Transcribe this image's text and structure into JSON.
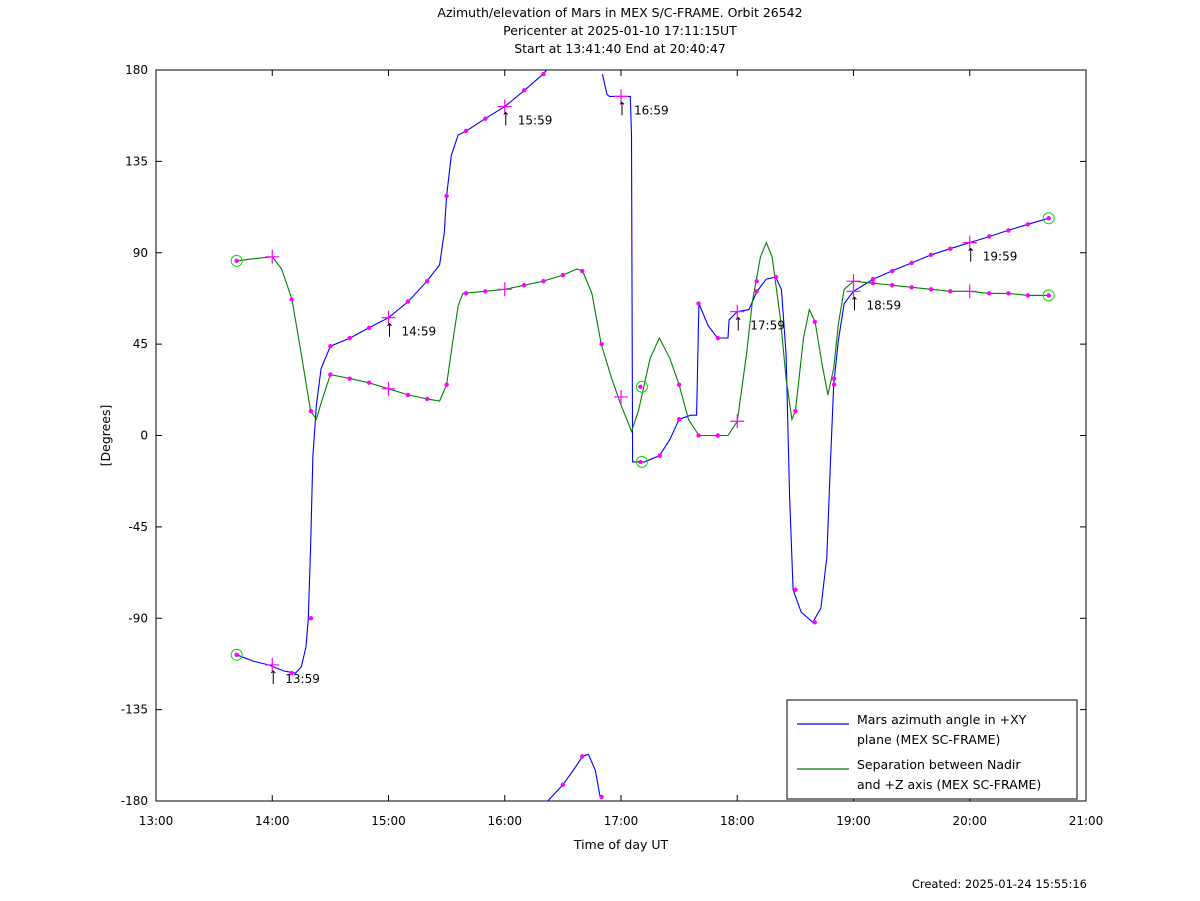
{
  "chart_data": {
    "type": "line",
    "title": "Azimuth/elevation of Mars in MEX S/C-FRAME.  Orbit 26542",
    "subtitle_lines": [
      "Pericenter at 2025-01-10 17:11:15UT",
      "Start at 13:41:40 End at 20:40:47"
    ],
    "xlabel": "Time of day UT",
    "ylabel": "[Degrees]",
    "x_unit": "hours",
    "xlim": [
      13,
      21
    ],
    "ylim": [
      -180,
      180
    ],
    "x_ticks": [
      {
        "x": 13,
        "label": "13:00"
      },
      {
        "x": 14,
        "label": "14:00"
      },
      {
        "x": 15,
        "label": "15:00"
      },
      {
        "x": 16,
        "label": "16:00"
      },
      {
        "x": 17,
        "label": "17:00"
      },
      {
        "x": 18,
        "label": "18:00"
      },
      {
        "x": 19,
        "label": "19:00"
      },
      {
        "x": 20,
        "label": "20:00"
      },
      {
        "x": 21,
        "label": "21:00"
      }
    ],
    "y_ticks": [
      {
        "y": 180,
        "label": "180"
      },
      {
        "y": 135,
        "label": "135"
      },
      {
        "y": 90,
        "label": "90"
      },
      {
        "y": 45,
        "label": "45"
      },
      {
        "y": 0,
        "label": "0"
      },
      {
        "y": -45,
        "label": "-45"
      },
      {
        "y": -90,
        "label": "-90"
      },
      {
        "y": -135,
        "label": "-135"
      },
      {
        "y": -180,
        "label": "-180"
      }
    ],
    "grid": false,
    "legend_position": "bottom-right",
    "series": [
      {
        "name": "Mars azimuth angle in +XY plane (MEX SC-FRAME)",
        "legend_lines": [
          "Mars azimuth angle in +XY",
          "plane (MEX SC-FRAME)"
        ],
        "color": "#0000ff",
        "points": [
          [
            13.694,
            -108
          ],
          [
            13.83,
            -111
          ],
          [
            13.97,
            -113
          ],
          [
            14.1,
            -116
          ],
          [
            14.2,
            -117
          ],
          [
            14.25,
            -114
          ],
          [
            14.29,
            -104
          ],
          [
            14.31,
            -90
          ],
          [
            14.33,
            -55
          ],
          [
            14.35,
            -10
          ],
          [
            14.38,
            15
          ],
          [
            14.42,
            33
          ],
          [
            14.5,
            44
          ],
          [
            14.67,
            48
          ],
          [
            14.83,
            53
          ],
          [
            15.0,
            58
          ],
          [
            15.17,
            66
          ],
          [
            15.33,
            76
          ],
          [
            15.44,
            84
          ],
          [
            15.48,
            100
          ],
          [
            15.5,
            118
          ],
          [
            15.54,
            138
          ],
          [
            15.6,
            148
          ],
          [
            15.67,
            150
          ],
          [
            15.83,
            156
          ],
          [
            16.0,
            162
          ],
          [
            16.17,
            170
          ],
          [
            16.33,
            178
          ],
          [
            16.36,
            180
          ],
          null,
          [
            16.37,
            -180
          ],
          [
            16.5,
            -172
          ],
          [
            16.6,
            -164
          ],
          [
            16.67,
            -158
          ],
          [
            16.72,
            -157
          ],
          [
            16.78,
            -165
          ],
          [
            16.82,
            -178
          ],
          null,
          [
            16.84,
            178
          ],
          [
            16.88,
            168
          ],
          [
            16.9,
            167
          ],
          [
            17.08,
            167
          ],
          [
            17.09,
            148
          ],
          [
            17.1,
            -13
          ],
          [
            17.2,
            -13
          ],
          [
            17.33,
            -10
          ],
          [
            17.42,
            -2
          ],
          [
            17.5,
            8
          ],
          [
            17.6,
            10
          ],
          [
            17.65,
            10
          ],
          [
            17.67,
            65
          ],
          [
            17.75,
            54
          ],
          [
            17.83,
            48
          ],
          [
            17.92,
            48
          ],
          [
            17.93,
            57
          ],
          [
            18.0,
            61
          ],
          [
            18.1,
            62
          ],
          [
            18.17,
            71
          ],
          [
            18.25,
            77
          ],
          [
            18.33,
            78
          ],
          [
            18.38,
            72
          ],
          [
            18.42,
            40
          ],
          [
            18.45,
            -30
          ],
          [
            18.48,
            -76
          ],
          [
            18.55,
            -87
          ],
          [
            18.65,
            -92
          ],
          [
            18.72,
            -85
          ],
          [
            18.77,
            -60
          ],
          [
            18.8,
            -15
          ],
          [
            18.83,
            25
          ],
          [
            18.87,
            47
          ],
          [
            18.92,
            65
          ],
          [
            19.0,
            71
          ],
          [
            19.17,
            77
          ],
          [
            19.33,
            81
          ],
          [
            19.5,
            85
          ],
          [
            19.67,
            89
          ],
          [
            19.83,
            92
          ],
          [
            20.0,
            95
          ],
          [
            20.17,
            98
          ],
          [
            20.33,
            101
          ],
          [
            20.5,
            104
          ],
          [
            20.679,
            107
          ]
        ]
      },
      {
        "name": "Separation between Nadir and +Z axis (MEX SC-FRAME)",
        "legend_lines": [
          "Separation between Nadir",
          "and +Z axis (MEX SC-FRAME)"
        ],
        "color": "#007f00",
        "points": [
          [
            13.694,
            86
          ],
          [
            13.83,
            87
          ],
          [
            14.0,
            88
          ],
          [
            14.08,
            82
          ],
          [
            14.17,
            67
          ],
          [
            14.25,
            40
          ],
          [
            14.33,
            12
          ],
          [
            14.38,
            8
          ],
          [
            14.42,
            16
          ],
          [
            14.5,
            30
          ],
          [
            14.67,
            28
          ],
          [
            14.83,
            26
          ],
          [
            15.0,
            23
          ],
          [
            15.17,
            20
          ],
          [
            15.33,
            18
          ],
          [
            15.44,
            17
          ],
          [
            15.5,
            25
          ],
          [
            15.55,
            45
          ],
          [
            15.6,
            64
          ],
          [
            15.64,
            70
          ],
          [
            15.83,
            71
          ],
          [
            16.0,
            72
          ],
          [
            16.17,
            74
          ],
          [
            16.33,
            76
          ],
          [
            16.5,
            79
          ],
          [
            16.62,
            82
          ],
          [
            16.67,
            81
          ],
          [
            16.75,
            70
          ],
          [
            16.83,
            45
          ],
          [
            16.92,
            28
          ],
          [
            17.0,
            15
          ],
          [
            17.05,
            8
          ],
          [
            17.09,
            2
          ],
          [
            17.15,
            12
          ],
          [
            17.25,
            38
          ],
          [
            17.33,
            48
          ],
          [
            17.42,
            38
          ],
          [
            17.5,
            25
          ],
          [
            17.58,
            8
          ],
          [
            17.67,
            0
          ],
          [
            17.83,
            0
          ],
          [
            17.92,
            0
          ],
          [
            18.0,
            7
          ],
          [
            18.08,
            40
          ],
          [
            18.13,
            66
          ],
          [
            18.2,
            88
          ],
          [
            18.25,
            95
          ],
          [
            18.3,
            88
          ],
          [
            18.37,
            58
          ],
          [
            18.42,
            28
          ],
          [
            18.47,
            8
          ],
          [
            18.5,
            12
          ],
          [
            18.57,
            48
          ],
          [
            18.62,
            62
          ],
          [
            18.67,
            56
          ],
          [
            18.73,
            35
          ],
          [
            18.78,
            20
          ],
          [
            18.83,
            33
          ],
          [
            18.87,
            55
          ],
          [
            18.92,
            72
          ],
          [
            19.0,
            76
          ],
          [
            19.17,
            75
          ],
          [
            19.33,
            74
          ],
          [
            19.5,
            73
          ],
          [
            19.67,
            72
          ],
          [
            19.83,
            71
          ],
          [
            20.0,
            71
          ],
          [
            20.17,
            70
          ],
          [
            20.33,
            70
          ],
          [
            20.5,
            69
          ],
          [
            20.679,
            69
          ]
        ]
      }
    ],
    "dot_markers": [
      [
        13.694,
        -108
      ],
      [
        14.167,
        -117
      ],
      [
        14.333,
        -90
      ],
      [
        14.5,
        44
      ],
      [
        14.667,
        48
      ],
      [
        14.833,
        53
      ],
      [
        15.167,
        66
      ],
      [
        15.333,
        76
      ],
      [
        15.5,
        118
      ],
      [
        15.667,
        150
      ],
      [
        15.833,
        156
      ],
      [
        16.167,
        170
      ],
      [
        16.333,
        178
      ],
      [
        16.5,
        -172
      ],
      [
        16.667,
        -158
      ],
      [
        16.833,
        -178
      ],
      [
        17.167,
        -13
      ],
      [
        17.333,
        -10
      ],
      [
        17.5,
        8
      ],
      [
        17.667,
        65
      ],
      [
        17.833,
        48
      ],
      [
        18.167,
        71
      ],
      [
        18.333,
        78
      ],
      [
        18.5,
        -76
      ],
      [
        18.667,
        -92
      ],
      [
        18.833,
        25
      ],
      [
        19.167,
        77
      ],
      [
        19.333,
        81
      ],
      [
        19.5,
        85
      ],
      [
        19.667,
        89
      ],
      [
        19.833,
        92
      ],
      [
        20.167,
        98
      ],
      [
        20.333,
        101
      ],
      [
        20.5,
        104
      ],
      [
        20.679,
        107
      ],
      [
        13.694,
        86
      ],
      [
        14.167,
        67
      ],
      [
        14.333,
        12
      ],
      [
        14.5,
        30
      ],
      [
        14.667,
        28
      ],
      [
        14.833,
        26
      ],
      [
        15.167,
        20
      ],
      [
        15.333,
        18
      ],
      [
        15.5,
        25
      ],
      [
        15.667,
        70
      ],
      [
        15.833,
        71
      ],
      [
        16.167,
        74
      ],
      [
        16.333,
        76
      ],
      [
        16.5,
        79
      ],
      [
        16.667,
        81
      ],
      [
        16.833,
        45
      ],
      [
        17.167,
        24
      ],
      [
        17.5,
        25
      ],
      [
        17.667,
        0
      ],
      [
        17.833,
        0
      ],
      [
        18.167,
        76
      ],
      [
        18.333,
        78
      ],
      [
        18.5,
        12
      ],
      [
        18.667,
        56
      ],
      [
        18.833,
        28
      ],
      [
        19.167,
        75
      ],
      [
        19.333,
        74
      ],
      [
        19.5,
        73
      ],
      [
        19.667,
        72
      ],
      [
        19.833,
        71
      ],
      [
        20.167,
        70
      ],
      [
        20.333,
        70
      ],
      [
        20.5,
        69
      ],
      [
        20.679,
        69
      ]
    ],
    "cross_markers": [
      [
        14.0,
        -113
      ],
      [
        14.0,
        88
      ],
      [
        15.0,
        58
      ],
      [
        15.0,
        23
      ],
      [
        16.0,
        162
      ],
      [
        16.0,
        72
      ],
      [
        17.0,
        167
      ],
      [
        17.0,
        19
      ],
      [
        18.0,
        61
      ],
      [
        18.0,
        7
      ],
      [
        19.0,
        76
      ],
      [
        19.0,
        71
      ],
      [
        20.0,
        95
      ],
      [
        20.0,
        71
      ]
    ],
    "circle_markers": [
      [
        13.694,
        -108
      ],
      [
        13.694,
        86
      ],
      [
        17.18,
        24
      ],
      [
        17.18,
        -13
      ],
      [
        20.679,
        107
      ],
      [
        20.679,
        69
      ]
    ],
    "annotations": [
      {
        "x": 14.0,
        "y": -113,
        "text": "13:59"
      },
      {
        "x": 15.0,
        "y": 58,
        "text": "14:59"
      },
      {
        "x": 16.0,
        "y": 162,
        "text": "15:59"
      },
      {
        "x": 17.0,
        "y": 167,
        "text": "16:59"
      },
      {
        "x": 18.0,
        "y": 61,
        "text": "17:59"
      },
      {
        "x": 19.0,
        "y": 71,
        "text": "18:59"
      },
      {
        "x": 20.0,
        "y": 95,
        "text": "19:59"
      }
    ]
  },
  "footer": {
    "created": "Created: 2025-01-24 15:55:16"
  }
}
